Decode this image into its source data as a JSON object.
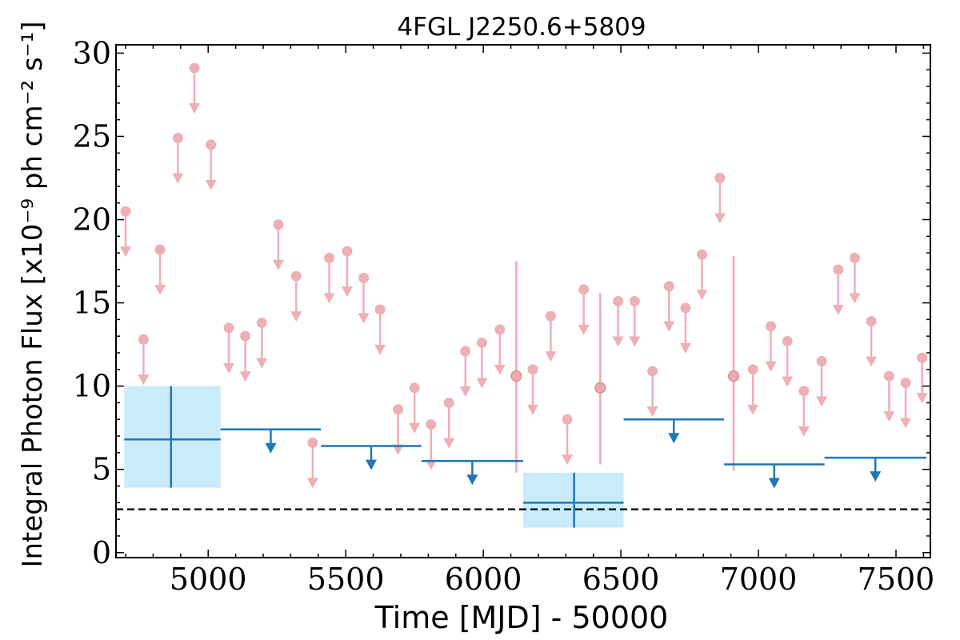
{
  "chart_data": {
    "type": "scatter",
    "title": "4FGL J2250.6+5809",
    "xlabel": "Time [MJD] - 50000",
    "ylabel": "Integral Photon Flux [x10⁻⁹ ph cm⁻² s⁻¹]",
    "xlim": [
      4665,
      7625
    ],
    "ylim": [
      -0.3,
      30.5
    ],
    "x_ticks": [
      5000,
      5500,
      6000,
      6500,
      7000,
      7500
    ],
    "y_ticks": [
      0,
      5,
      10,
      15,
      20,
      25,
      30
    ],
    "grid": false,
    "colors": {
      "fine_bins": "#e8969b",
      "coarse_bins": "#1f77b4",
      "coarse_band": "#c9ebfb",
      "reference_line": "#000000"
    },
    "reference_line": {
      "y": 2.6,
      "style": "dashed"
    },
    "fine_bin_upper_limits": [
      {
        "x": 4700,
        "y": 20.5
      },
      {
        "x": 4765,
        "y": 12.8
      },
      {
        "x": 4825,
        "y": 18.2
      },
      {
        "x": 4890,
        "y": 24.9
      },
      {
        "x": 4950,
        "y": 29.1
      },
      {
        "x": 5010,
        "y": 24.5
      },
      {
        "x": 5075,
        "y": 13.5
      },
      {
        "x": 5135,
        "y": 13.0
      },
      {
        "x": 5195,
        "y": 13.8
      },
      {
        "x": 5255,
        "y": 19.7
      },
      {
        "x": 5320,
        "y": 16.6
      },
      {
        "x": 5380,
        "y": 6.6
      },
      {
        "x": 5440,
        "y": 17.7
      },
      {
        "x": 5505,
        "y": 18.1
      },
      {
        "x": 5565,
        "y": 16.5
      },
      {
        "x": 5625,
        "y": 14.6
      },
      {
        "x": 5690,
        "y": 8.6
      },
      {
        "x": 5750,
        "y": 9.9
      },
      {
        "x": 5810,
        "y": 7.7
      },
      {
        "x": 5875,
        "y": 9.0
      },
      {
        "x": 5935,
        "y": 12.1
      },
      {
        "x": 5995,
        "y": 12.6
      },
      {
        "x": 6060,
        "y": 13.4
      },
      {
        "x": 6180,
        "y": 11.0
      },
      {
        "x": 6245,
        "y": 14.2
      },
      {
        "x": 6305,
        "y": 8.0
      },
      {
        "x": 6365,
        "y": 15.8
      },
      {
        "x": 6490,
        "y": 15.1
      },
      {
        "x": 6550,
        "y": 15.1
      },
      {
        "x": 6615,
        "y": 10.9
      },
      {
        "x": 6675,
        "y": 16.0
      },
      {
        "x": 6735,
        "y": 14.7
      },
      {
        "x": 6795,
        "y": 17.9
      },
      {
        "x": 6860,
        "y": 22.5
      },
      {
        "x": 6980,
        "y": 11.0
      },
      {
        "x": 7045,
        "y": 13.6
      },
      {
        "x": 7105,
        "y": 12.7
      },
      {
        "x": 7165,
        "y": 9.7
      },
      {
        "x": 7230,
        "y": 11.5
      },
      {
        "x": 7290,
        "y": 17.0
      },
      {
        "x": 7350,
        "y": 17.7
      },
      {
        "x": 7410,
        "y": 13.9
      },
      {
        "x": 7475,
        "y": 10.6
      },
      {
        "x": 7535,
        "y": 10.2
      },
      {
        "x": 7595,
        "y": 11.7
      }
    ],
    "fine_bin_detections": [
      {
        "x": 6120,
        "y": 10.6,
        "y_low": 4.8,
        "y_high": 17.5
      },
      {
        "x": 6425,
        "y": 9.9,
        "y_low": 5.3,
        "y_high": 15.6
      },
      {
        "x": 6910,
        "y": 10.6,
        "y_low": 4.9,
        "y_high": 17.8
      }
    ],
    "coarse_bin_detections": [
      {
        "x": 4865,
        "x_low": 4695,
        "x_high": 5045,
        "y": 6.8,
        "y_low": 3.9,
        "y_high": 10.0
      },
      {
        "x": 6330,
        "x_low": 6145,
        "x_high": 6510,
        "y": 3.0,
        "y_low": 1.5,
        "y_high": 4.8
      }
    ],
    "coarse_bin_upper_limits": [
      {
        "x_low": 5045,
        "x_high": 5410,
        "y": 7.4
      },
      {
        "x_low": 5410,
        "x_high": 5775,
        "y": 6.4
      },
      {
        "x_low": 5775,
        "x_high": 6145,
        "y": 5.5
      },
      {
        "x_low": 6510,
        "x_high": 6875,
        "y": 8.0
      },
      {
        "x_low": 6875,
        "x_high": 7240,
        "y": 5.3
      },
      {
        "x_low": 7240,
        "x_high": 7610,
        "y": 5.7
      }
    ]
  }
}
